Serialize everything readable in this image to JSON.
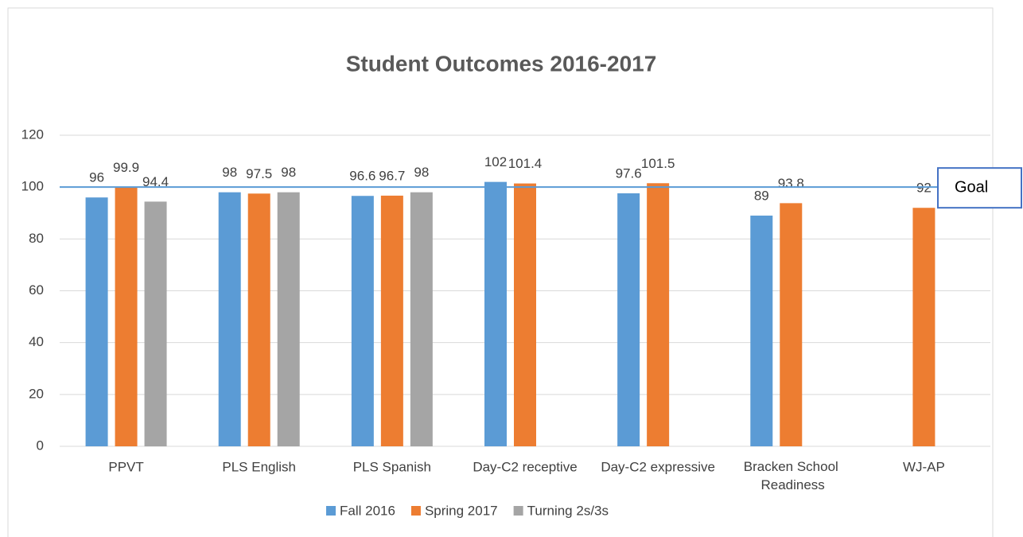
{
  "chart_data": {
    "type": "bar",
    "title": "Student Outcomes 2016-2017",
    "categories": [
      "PPVT",
      "PLS English",
      "PLS Spanish",
      "Day-C2 receptive",
      "Day-C2 expressive",
      "Bracken School Readiness",
      "WJ-AP"
    ],
    "series": [
      {
        "name": "Fall 2016",
        "color": "#5b9bd5",
        "values": [
          96,
          98,
          96.6,
          102,
          97.6,
          89,
          null
        ]
      },
      {
        "name": "Spring 2017",
        "color": "#ed7d31",
        "values": [
          99.9,
          97.5,
          96.7,
          101.4,
          101.5,
          93.8,
          92
        ]
      },
      {
        "name": "Turning 2s/3s",
        "color": "#a5a5a5",
        "values": [
          94.4,
          98,
          98,
          null,
          null,
          null,
          null
        ]
      }
    ],
    "goal": {
      "label": "Goal",
      "value": 100,
      "color": "#5b9bd5"
    },
    "ylim": [
      0,
      120
    ],
    "yticks": [
      0,
      20,
      40,
      60,
      80,
      100,
      120
    ],
    "grid": true,
    "legend": "bottom"
  }
}
